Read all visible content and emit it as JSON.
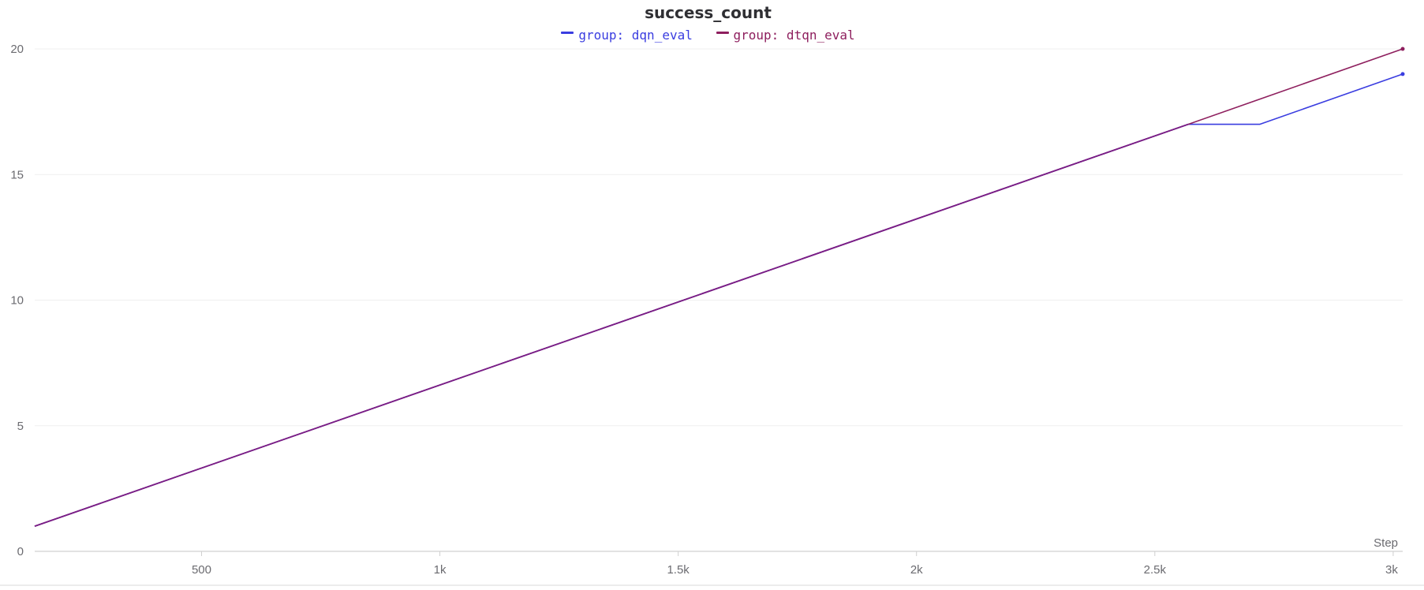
{
  "chart_data": {
    "type": "line",
    "title": "success_count",
    "xlabel": "Step",
    "ylabel": "",
    "xlim": [
      150,
      3020
    ],
    "ylim": [
      0,
      20
    ],
    "x_ticks": [
      500,
      1000,
      1500,
      2000,
      2500,
      3000
    ],
    "x_tick_labels": [
      "500",
      "1k",
      "1.5k",
      "2k",
      "2.5k",
      "3k"
    ],
    "y_ticks": [
      0,
      5,
      10,
      15,
      20
    ],
    "y_tick_labels": [
      "0",
      "5",
      "10",
      "15",
      "20"
    ],
    "grid": true,
    "legend_position": "top-center",
    "series": [
      {
        "name": "group: dqn_eval",
        "color": "#3a3de0",
        "x": [
          150,
          2570,
          2720,
          3020
        ],
        "y": [
          1,
          17,
          17,
          19
        ]
      },
      {
        "name": "group: dtqn_eval",
        "color": "#8e1f5e",
        "x": [
          150,
          2570,
          3020
        ],
        "y": [
          1,
          17,
          20
        ]
      }
    ],
    "overlap_color": "#7a1e86"
  }
}
